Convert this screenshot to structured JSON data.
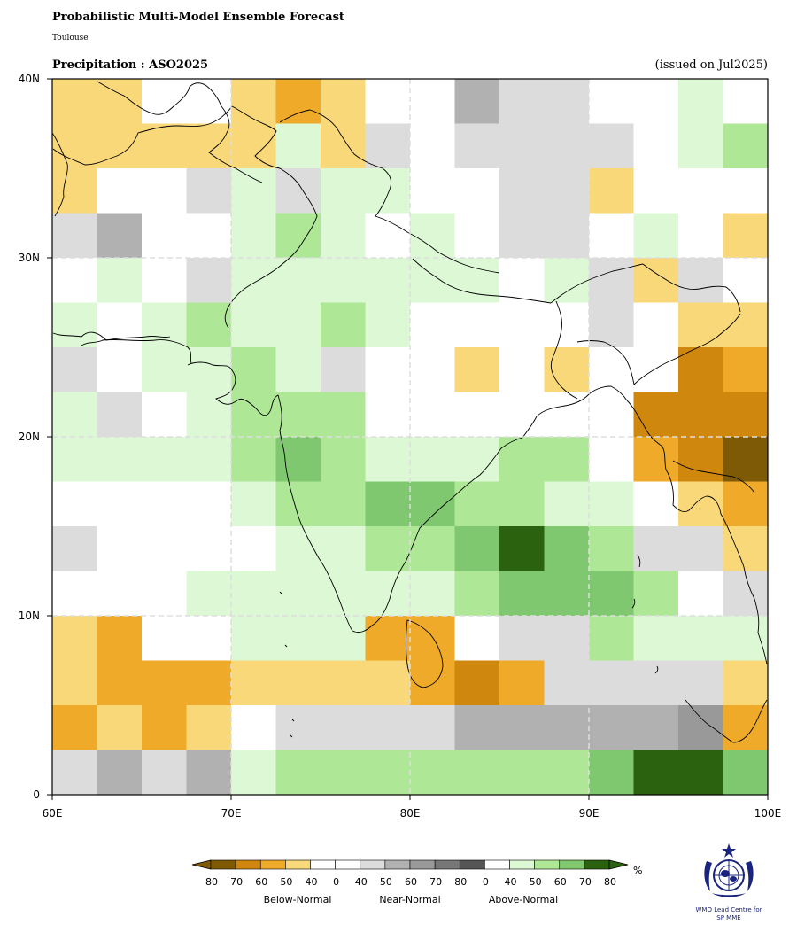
{
  "header": {
    "title": "Probabilistic Multi-Model Ensemble Forecast",
    "subtitle": "Toulouse",
    "variable": "Precipitation : ASO2025",
    "issued": "(issued on Jul2025)"
  },
  "map": {
    "lon_range": [
      60,
      100
    ],
    "lat_range": [
      0,
      40
    ],
    "cell_size_deg": 2.5,
    "x_ticks": [
      "60E",
      "70E",
      "80E",
      "90E",
      "100E"
    ],
    "y_ticks": [
      "40N",
      "30N",
      "20N",
      "10N",
      "0"
    ],
    "palette": {
      "W": "#ffffff",
      "b80": "#7f5a06",
      "b70": "#d0870d",
      "b60": "#eeaa28",
      "b50": "#f9d87a",
      "n40": "#dcdcdc",
      "n50": "#b0b1b0",
      "n60": "#999999",
      "a40": "#dcf8d4",
      "a50": "#aee796",
      "a60": "#80c870",
      "a70": "#2b6210"
    },
    "grid": [
      [
        "b50",
        "b50",
        "W",
        "W",
        "b50",
        "b60",
        "b50",
        "W",
        "W",
        "n50",
        "n40",
        "n40",
        "W",
        "W",
        "a40",
        "W"
      ],
      [
        "b50",
        "b50",
        "b50",
        "b50",
        "b50",
        "a40",
        "b50",
        "n40",
        "W",
        "n40",
        "n40",
        "n40",
        "n40",
        "W",
        "a40",
        "a50"
      ],
      [
        "b50",
        "W",
        "W",
        "n40",
        "a40",
        "n40",
        "a40",
        "a40",
        "W",
        "W",
        "n40",
        "n40",
        "b50",
        "W",
        "W",
        "W"
      ],
      [
        "n40",
        "n50",
        "W",
        "W",
        "a40",
        "a50",
        "a40",
        "W",
        "a40",
        "W",
        "n40",
        "n40",
        "W",
        "a40",
        "W",
        "b50"
      ],
      [
        "W",
        "a40",
        "W",
        "n40",
        "a40",
        "a40",
        "a40",
        "a40",
        "a40",
        "a40",
        "W",
        "a40",
        "n40",
        "b50",
        "n40",
        "W"
      ],
      [
        "a40",
        "W",
        "a40",
        "a50",
        "a40",
        "a40",
        "a50",
        "a40",
        "W",
        "W",
        "W",
        "W",
        "n40",
        "W",
        "b50",
        "b50"
      ],
      [
        "n40",
        "W",
        "a40",
        "a40",
        "a50",
        "a40",
        "n40",
        "W",
        "W",
        "b50",
        "W",
        "b50",
        "W",
        "W",
        "b70",
        "b60"
      ],
      [
        "a40",
        "n40",
        "W",
        "a40",
        "a50",
        "a50",
        "a50",
        "W",
        "W",
        "W",
        "W",
        "W",
        "W",
        "b70",
        "b70",
        "b70"
      ],
      [
        "a40",
        "a40",
        "a40",
        "a40",
        "a50",
        "a60",
        "a50",
        "a40",
        "a40",
        "a40",
        "a50",
        "a50",
        "W",
        "b60",
        "b70",
        "b80"
      ],
      [
        "W",
        "W",
        "W",
        "W",
        "a40",
        "a50",
        "a50",
        "a60",
        "a60",
        "a50",
        "a50",
        "a40",
        "a40",
        "W",
        "b50",
        "b60"
      ],
      [
        "n40",
        "W",
        "W",
        "W",
        "W",
        "a40",
        "a40",
        "a50",
        "a50",
        "a60",
        "a70",
        "a60",
        "a50",
        "n40",
        "n40",
        "b50"
      ],
      [
        "W",
        "W",
        "W",
        "a40",
        "a40",
        "a40",
        "a40",
        "a40",
        "a40",
        "a50",
        "a60",
        "a60",
        "a60",
        "a50",
        "W",
        "n40"
      ],
      [
        "b50",
        "b60",
        "W",
        "W",
        "a40",
        "a40",
        "a40",
        "b60",
        "b60",
        "W",
        "n40",
        "n40",
        "a50",
        "a40",
        "a40",
        "a40"
      ],
      [
        "b50",
        "b60",
        "b60",
        "b60",
        "b50",
        "b50",
        "b50",
        "b50",
        "b60",
        "b70",
        "b60",
        "n40",
        "n40",
        "n40",
        "n40",
        "b50"
      ],
      [
        "b60",
        "b50",
        "b60",
        "b50",
        "W",
        "n40",
        "n40",
        "n40",
        "n40",
        "n50",
        "n50",
        "n50",
        "n50",
        "n50",
        "n60",
        "b60"
      ],
      [
        "n40",
        "n50",
        "n40",
        "n50",
        "a40",
        "a50",
        "a50",
        "a50",
        "a50",
        "a50",
        "a50",
        "a50",
        "a60",
        "a70",
        "a70",
        "a60"
      ]
    ]
  },
  "colorbar": {
    "unit": "%",
    "groups": [
      {
        "label": "Below-Normal",
        "ticks": [
          "80",
          "70",
          "60",
          "50",
          "40"
        ],
        "colors": [
          "#7f5a06",
          "#d0870d",
          "#eeaa28",
          "#f9d87a",
          "#ffffff"
        ]
      },
      {
        "label": "Near-Normal",
        "ticks": [
          "0",
          "40",
          "50",
          "60",
          "70",
          "80"
        ],
        "colors": [
          "#ffffff",
          "#dcdcdc",
          "#b0b1b0",
          "#999999",
          "#777777",
          "#555555"
        ]
      },
      {
        "label": "Above-Normal",
        "ticks": [
          "0",
          "40",
          "50",
          "60",
          "70",
          "80"
        ],
        "colors": [
          "#ffffff",
          "#dcf8d4",
          "#aee796",
          "#80c870",
          "#2b6210"
        ]
      }
    ],
    "left_arrow_color": "#7f5a06",
    "right_arrow_color": "#2b6210"
  },
  "logo": {
    "caption_line1": "WMO Lead Centre for",
    "caption_line2": "SP MME"
  }
}
